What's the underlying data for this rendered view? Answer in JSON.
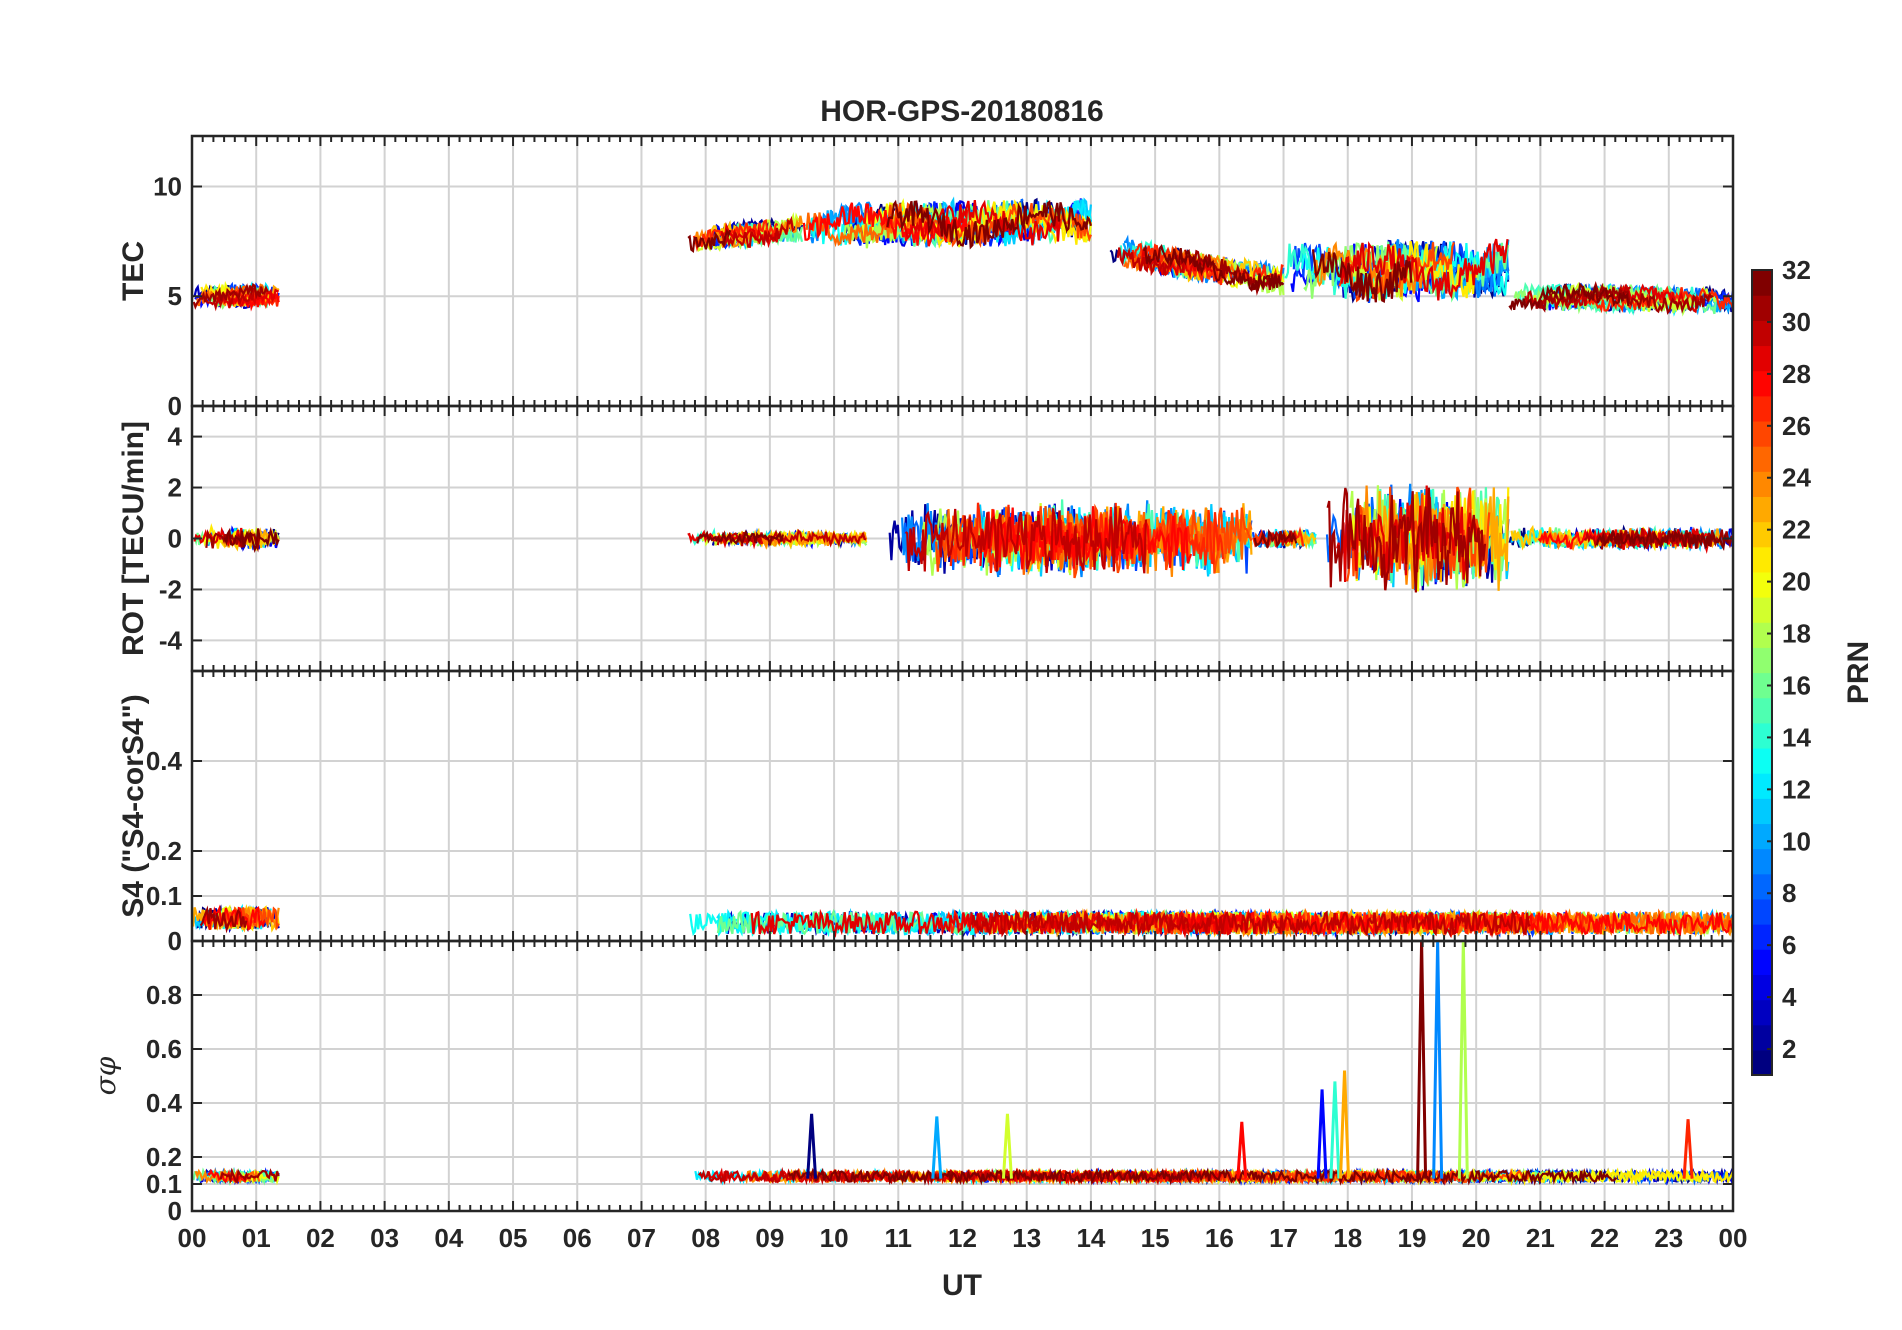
{
  "chart_data": {
    "type": "line",
    "title": "HOR-GPS-20180816",
    "xlabel": "UT",
    "x_ticks": [
      "00",
      "01",
      "02",
      "03",
      "04",
      "05",
      "06",
      "07",
      "08",
      "09",
      "10",
      "11",
      "12",
      "13",
      "14",
      "15",
      "16",
      "17",
      "18",
      "19",
      "20",
      "21",
      "22",
      "23",
      "00"
    ],
    "xlim_hours": [
      0,
      24
    ],
    "grid": true,
    "colorbar": {
      "label": "PRN",
      "range": [
        1,
        32
      ],
      "ticks": [
        "2",
        "4",
        "6",
        "8",
        "10",
        "12",
        "14",
        "16",
        "18",
        "20",
        "22",
        "24",
        "26",
        "28",
        "30",
        "32"
      ],
      "colormap": "jet",
      "placement": "right"
    },
    "panels": [
      {
        "id": "tec",
        "ylabel": "TEC",
        "ylim": [
          0,
          12.3
        ],
        "y_ticks": [
          {
            "v": 0,
            "t": "0"
          },
          {
            "v": 5,
            "t": "5"
          },
          {
            "v": 10,
            "t": "10"
          }
        ],
        "activity": [
          {
            "start": 0.0,
            "end": 1.35,
            "base": 5.0,
            "spread": 0.6,
            "drift": 0.0
          },
          {
            "start": 7.7,
            "end": 9.5,
            "base": 7.6,
            "spread": 0.7,
            "drift": 0.5
          },
          {
            "start": 9.5,
            "end": 14.0,
            "base": 8.2,
            "spread": 1.2,
            "drift": 0.2
          },
          {
            "start": 14.0,
            "end": 17.0,
            "base": 7.2,
            "spread": 0.8,
            "drift": -1.5
          },
          {
            "start": 17.0,
            "end": 20.5,
            "base": 6.0,
            "spread": 1.6,
            "drift": 0.3
          },
          {
            "start": 20.5,
            "end": 24.0,
            "base": 5.0,
            "spread": 0.7,
            "drift": -0.2
          }
        ]
      },
      {
        "id": "rot",
        "ylabel": "ROT [TECU/min]",
        "ylim": [
          -5.2,
          5.2
        ],
        "y_ticks": [
          {
            "v": -4,
            "t": "-4"
          },
          {
            "v": -2,
            "t": "-2"
          },
          {
            "v": 0,
            "t": "0"
          },
          {
            "v": 2,
            "t": "2"
          },
          {
            "v": 4,
            "t": "4"
          }
        ],
        "activity": [
          {
            "start": 0.0,
            "end": 1.35,
            "base": 0.0,
            "spread": 0.35,
            "drift": 0.0
          },
          {
            "start": 7.7,
            "end": 10.5,
            "base": 0.0,
            "spread": 0.25,
            "drift": 0.0
          },
          {
            "start": 10.5,
            "end": 16.5,
            "base": 0.0,
            "spread": 1.2,
            "drift": 0.0
          },
          {
            "start": 16.5,
            "end": 17.5,
            "base": 0.0,
            "spread": 0.3,
            "drift": 0.0
          },
          {
            "start": 17.5,
            "end": 20.5,
            "base": 0.0,
            "spread": 1.8,
            "drift": 0.0
          },
          {
            "start": 20.5,
            "end": 24.0,
            "base": 0.0,
            "spread": 0.35,
            "drift": 0.0
          }
        ]
      },
      {
        "id": "s4",
        "ylabel": "S4 (\"S4-corS4\")",
        "ylim": [
          0,
          0.6
        ],
        "y_ticks": [
          {
            "v": 0,
            "t": "0"
          },
          {
            "v": 0.1,
            "t": "0.1"
          },
          {
            "v": 0.2,
            "t": "0.2"
          },
          {
            "v": 0.4,
            "t": "0.4"
          }
        ],
        "activity": [
          {
            "start": 0.0,
            "end": 1.35,
            "base": 0.04,
            "spread": 0.05,
            "drift": 0.0
          },
          {
            "start": 7.7,
            "end": 24.0,
            "base": 0.03,
            "spread": 0.05,
            "drift": 0.0
          }
        ]
      },
      {
        "id": "sigma_phi",
        "ylabel": "σφ",
        "ylim": [
          0,
          1.0
        ],
        "y_ticks": [
          {
            "v": 0,
            "t": "0"
          },
          {
            "v": 0.1,
            "t": "0.1"
          },
          {
            "v": 0.2,
            "t": "0.2"
          },
          {
            "v": 0.4,
            "t": "0.4"
          },
          {
            "v": 0.6,
            "t": "0.6"
          },
          {
            "v": 0.8,
            "t": "0.8"
          }
        ],
        "activity": [
          {
            "start": 0.0,
            "end": 1.35,
            "base": 0.12,
            "spread": 0.04,
            "drift": 0.0
          },
          {
            "start": 7.7,
            "end": 24.0,
            "base": 0.12,
            "spread": 0.04,
            "drift": 0.0
          }
        ],
        "spikes": [
          {
            "t": 9.65,
            "v": 0.36
          },
          {
            "t": 11.6,
            "v": 0.35
          },
          {
            "t": 12.7,
            "v": 0.36
          },
          {
            "t": 16.35,
            "v": 0.33
          },
          {
            "t": 17.6,
            "v": 0.45
          },
          {
            "t": 17.8,
            "v": 0.48
          },
          {
            "t": 17.95,
            "v": 0.52
          },
          {
            "t": 19.15,
            "v": 1.0
          },
          {
            "t": 19.4,
            "v": 1.0
          },
          {
            "t": 19.8,
            "v": 1.0
          },
          {
            "t": 23.3,
            "v": 0.34
          }
        ]
      }
    ]
  }
}
